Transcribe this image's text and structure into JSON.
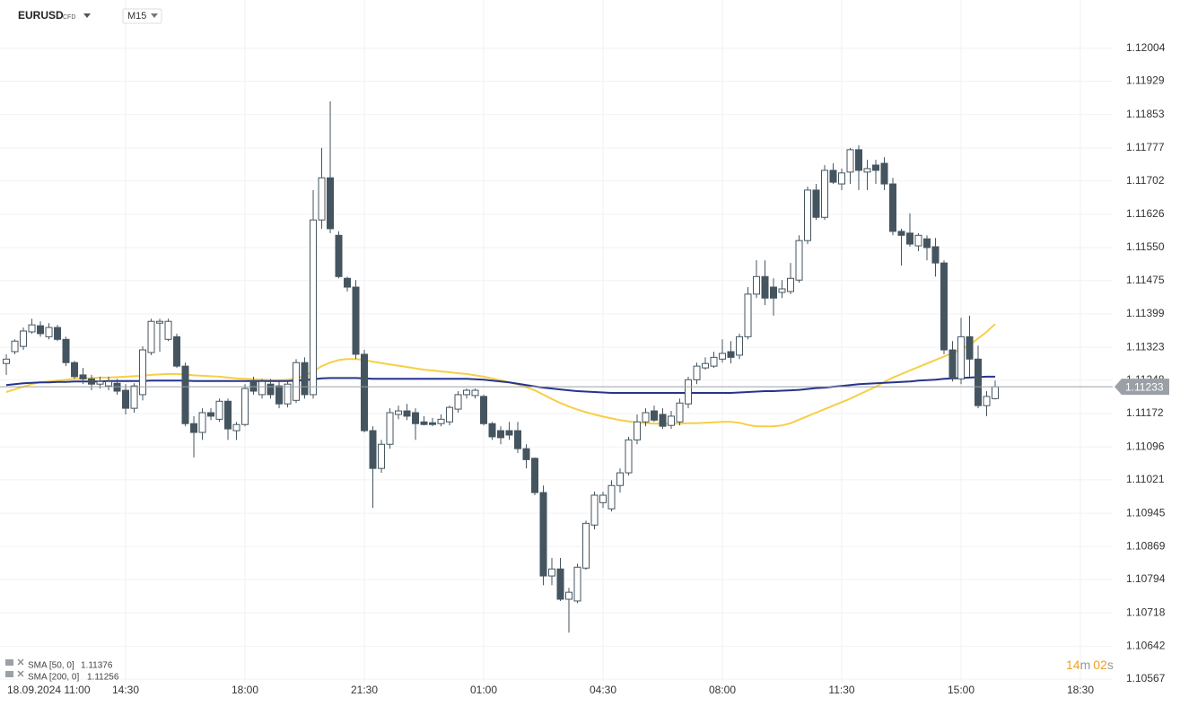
{
  "chart_data": {
    "type": "candlestick",
    "symbol": "EURUSD",
    "instrument_type": "CFD",
    "interval": "M15",
    "up_color": "#ffffff",
    "down_color": "#455560",
    "grid": true,
    "open": [
      1.11286,
      1.11313,
      1.11325,
      1.11358,
      1.11372,
      1.11347,
      1.11368,
      1.11341,
      1.11288,
      1.1126,
      1.11251,
      1.11239,
      1.11235,
      1.11241,
      1.11225,
      1.11184,
      1.11215,
      1.11311,
      1.11378,
      1.11341,
      1.11347,
      1.1128,
      1.11149,
      1.11129,
      1.11174,
      1.11159,
      1.112,
      1.11133,
      1.11147,
      1.11245,
      1.11215,
      1.11239,
      1.11235,
      1.11194,
      1.11202,
      1.11288,
      1.11215,
      1.11613,
      1.11709,
      1.11578,
      1.1148,
      1.1146,
      1.11307,
      1.11133,
      1.11047,
      1.11102,
      1.1117,
      1.11178,
      1.11174,
      1.11153,
      1.11151,
      1.11149,
      1.11153,
      1.11182,
      1.11215,
      1.11213,
      1.11211,
      1.11149,
      1.11133,
      1.11133,
      1.11133,
      1.11092,
      1.1107,
      1.10992,
      1.10802,
      1.10818,
      1.10749,
      1.10745,
      1.1082,
      1.10918,
      1.10969,
      1.10955,
      1.11008,
      1.11037,
      1.11112,
      1.11153,
      1.11178,
      1.1117,
      1.11145,
      1.11153,
      1.11194,
      1.11249,
      1.11276,
      1.1128,
      1.11296,
      1.11313,
      1.11305,
      1.11347,
      1.11444,
      1.11484,
      1.1146,
      1.11448,
      1.1145,
      1.11476,
      1.11566,
      1.11681,
      1.11619,
      1.11726,
      1.11695,
      1.11722,
      1.11773,
      1.11722,
      1.11738,
      1.11742,
      1.11695,
      1.11587,
      1.11583,
      1.11554,
      1.1157,
      1.11552,
      1.11515,
      1.11317,
      1.11251,
      1.11347,
      1.11296,
      1.1119,
      1.11206
    ],
    "high": [
      1.11307,
      1.11341,
      1.11368,
      1.11388,
      1.11382,
      1.11378,
      1.11374,
      1.11347,
      1.11292,
      1.11276,
      1.1126,
      1.11256,
      1.11256,
      1.11251,
      1.11239,
      1.11241,
      1.11325,
      1.11388,
      1.11388,
      1.11388,
      1.11354,
      1.11288,
      1.11166,
      1.11184,
      1.11184,
      1.11206,
      1.11206,
      1.11153,
      1.11239,
      1.11256,
      1.11251,
      1.11251,
      1.11245,
      1.11245,
      1.11296,
      1.113,
      1.11681,
      1.11777,
      1.11883,
      1.11587,
      1.11484,
      1.11476,
      1.11317,
      1.11143,
      1.11112,
      1.11184,
      1.1119,
      1.11194,
      1.11184,
      1.11166,
      1.11162,
      1.1117,
      1.1119,
      1.11223,
      1.11229,
      1.11229,
      1.11215,
      1.11153,
      1.11143,
      1.11153,
      1.11153,
      1.11102,
      1.11072,
      1.11008,
      1.10843,
      1.10843,
      1.10775,
      1.1083,
      1.10928,
      1.10994,
      1.10994,
      1.1102,
      1.11047,
      1.11119,
      1.1117,
      1.11184,
      1.1119,
      1.11184,
      1.11178,
      1.11206,
      1.11256,
      1.11288,
      1.113,
      1.11313,
      1.11341,
      1.11337,
      1.11354,
      1.1146,
      1.11521,
      1.11521,
      1.1148,
      1.11476,
      1.11515,
      1.11578,
      1.11689,
      1.11695,
      1.11738,
      1.11742,
      1.1173,
      1.11777,
      1.11783,
      1.1175,
      1.1175,
      1.11756,
      1.11709,
      1.11593,
      1.11628,
      1.11583,
      1.11578,
      1.11572,
      1.11521,
      1.11337,
      1.1139,
      1.11395,
      1.11327,
      1.11223,
      1.11247
    ],
    "low": [
      1.1126,
      1.11307,
      1.11317,
      1.11354,
      1.11347,
      1.11341,
      1.11337,
      1.1128,
      1.11251,
      1.11239,
      1.11225,
      1.11229,
      1.11225,
      1.11215,
      1.1117,
      1.11174,
      1.11202,
      1.11305,
      1.11313,
      1.11337,
      1.11276,
      1.11143,
      1.11072,
      1.11112,
      1.11157,
      1.11153,
      1.11112,
      1.11112,
      1.11143,
      1.11215,
      1.11206,
      1.11206,
      1.11184,
      1.11186,
      1.11196,
      1.11206,
      1.11206,
      1.11593,
      1.11583,
      1.1148,
      1.1145,
      1.11296,
      1.11129,
      1.10957,
      1.11037,
      1.11092,
      1.11159,
      1.11157,
      1.11112,
      1.11145,
      1.11143,
      1.11143,
      1.11145,
      1.11174,
      1.11206,
      1.11206,
      1.11145,
      1.11112,
      1.11102,
      1.11112,
      1.11082,
      1.11047,
      1.10986,
      1.10781,
      1.10781,
      1.10745,
      1.10673,
      1.1074,
      1.10816,
      1.10908,
      1.10957,
      1.10949,
      1.10992,
      1.11031,
      1.11102,
      1.11143,
      1.11153,
      1.11137,
      1.11137,
      1.11145,
      1.11184,
      1.11239,
      1.11272,
      1.11276,
      1.11288,
      1.11286,
      1.11296,
      1.11341,
      1.11435,
      1.11419,
      1.11395,
      1.11435,
      1.11444,
      1.1147,
      1.11558,
      1.11613,
      1.11613,
      1.11695,
      1.11681,
      1.11695,
      1.11681,
      1.11681,
      1.11695,
      1.11681,
      1.11578,
      1.11509,
      1.11552,
      1.11542,
      1.11521,
      1.11484,
      1.11307,
      1.11245,
      1.11239,
      1.11256,
      1.11184,
      1.11166,
      1.11204
    ],
    "close": [
      1.11296,
      1.11337,
      1.1136,
      1.11374,
      1.11354,
      1.11368,
      1.11341,
      1.11288,
      1.11256,
      1.11251,
      1.11239,
      1.11245,
      1.11245,
      1.11223,
      1.11184,
      1.11235,
      1.11317,
      1.11382,
      1.11382,
      1.11382,
      1.1128,
      1.11149,
      1.11129,
      1.11174,
      1.11166,
      1.112,
      1.11137,
      1.11147,
      1.11229,
      1.11223,
      1.11245,
      1.11215,
      1.11194,
      1.11239,
      1.11288,
      1.11215,
      1.11613,
      1.11709,
      1.11593,
      1.11484,
      1.1146,
      1.11307,
      1.11133,
      1.11047,
      1.11102,
      1.11174,
      1.11178,
      1.11166,
      1.11149,
      1.11147,
      1.11147,
      1.11159,
      1.11186,
      1.11215,
      1.11225,
      1.11225,
      1.11149,
      1.11119,
      1.11117,
      1.11123,
      1.11092,
      1.11067,
      1.10992,
      1.10802,
      1.10818,
      1.10749,
      1.10765,
      1.10822,
      1.10922,
      1.10986,
      1.10986,
      1.11008,
      1.11037,
      1.11112,
      1.11153,
      1.11174,
      1.11157,
      1.11143,
      1.11166,
      1.11196,
      1.11249,
      1.1128,
      1.11286,
      1.113,
      1.11309,
      1.113,
      1.11347,
      1.11444,
      1.11484,
      1.11435,
      1.11435,
      1.11456,
      1.1148,
      1.11566,
      1.11681,
      1.11619,
      1.11726,
      1.11699,
      1.1172,
      1.11773,
      1.11726,
      1.1173,
      1.11726,
      1.11695,
      1.11587,
      1.11578,
      1.11558,
      1.11578,
      1.1155,
      1.11515,
      1.11317,
      1.11251,
      1.11347,
      1.11296,
      1.1119,
      1.11211,
      1.11233
    ],
    "series": [
      {
        "name": "SMA [50, 0]",
        "color": "#f6cf45",
        "values": [
          1.11221,
          1.11227,
          1.11233,
          1.11239,
          1.11243,
          1.11245,
          1.11247,
          1.11249,
          1.11251,
          1.11251,
          1.11253,
          1.11254,
          1.11254,
          1.11255,
          1.11256,
          1.11257,
          1.11258,
          1.1126,
          1.11261,
          1.11262,
          1.11262,
          1.11261,
          1.11259,
          1.11258,
          1.11257,
          1.11256,
          1.11254,
          1.11252,
          1.11251,
          1.1125,
          1.11249,
          1.11248,
          1.11248,
          1.11249,
          1.11252,
          1.11258,
          1.11268,
          1.1128,
          1.11288,
          1.11294,
          1.11296,
          1.11296,
          1.11294,
          1.1129,
          1.11287,
          1.11284,
          1.11281,
          1.11278,
          1.11275,
          1.11272,
          1.1127,
          1.11268,
          1.11266,
          1.11264,
          1.11262,
          1.11259,
          1.11256,
          1.11252,
          1.11248,
          1.11243,
          1.11238,
          1.11232,
          1.11225,
          1.11215,
          1.11205,
          1.11196,
          1.11188,
          1.11181,
          1.11175,
          1.1117,
          1.11165,
          1.11161,
          1.11157,
          1.11154,
          1.11152,
          1.1115,
          1.11149,
          1.11149,
          1.11149,
          1.11149,
          1.1115,
          1.1115,
          1.11151,
          1.11152,
          1.11153,
          1.11153,
          1.11151,
          1.11146,
          1.11143,
          1.11143,
          1.11143,
          1.11145,
          1.1115,
          1.11158,
          1.11166,
          1.11174,
          1.11182,
          1.1119,
          1.11198,
          1.11206,
          1.11215,
          1.11224,
          1.11233,
          1.11244,
          1.11254,
          1.11262,
          1.1127,
          1.11278,
          1.11286,
          1.11294,
          1.11302,
          1.1131,
          1.11318,
          1.11328,
          1.11343,
          1.11358,
          1.11376
        ]
      },
      {
        "name": "SMA [200, 0]",
        "color": "#27348b",
        "values": [
          1.11237,
          1.11239,
          1.11241,
          1.11242,
          1.11243,
          1.11243,
          1.11244,
          1.11244,
          1.11245,
          1.11245,
          1.11245,
          1.11245,
          1.11246,
          1.11246,
          1.11246,
          1.11246,
          1.11246,
          1.11247,
          1.11247,
          1.11247,
          1.11247,
          1.11247,
          1.11246,
          1.11246,
          1.11246,
          1.11246,
          1.11246,
          1.11246,
          1.11246,
          1.11246,
          1.11246,
          1.11246,
          1.11246,
          1.11246,
          1.11247,
          1.11248,
          1.1125,
          1.11252,
          1.11253,
          1.11253,
          1.11253,
          1.11253,
          1.11252,
          1.11251,
          1.11251,
          1.11251,
          1.11251,
          1.11251,
          1.11251,
          1.11251,
          1.11251,
          1.11251,
          1.11251,
          1.11251,
          1.11251,
          1.1125,
          1.11249,
          1.11247,
          1.11245,
          1.11243,
          1.1124,
          1.11237,
          1.11234,
          1.11231,
          1.11229,
          1.11227,
          1.11225,
          1.11223,
          1.11222,
          1.11221,
          1.1122,
          1.11219,
          1.11219,
          1.11219,
          1.11219,
          1.11219,
          1.11219,
          1.11219,
          1.11219,
          1.11219,
          1.11219,
          1.11219,
          1.11219,
          1.11219,
          1.11219,
          1.11219,
          1.1122,
          1.11221,
          1.11222,
          1.11223,
          1.11223,
          1.11224,
          1.11225,
          1.11226,
          1.11228,
          1.1123,
          1.11231,
          1.11233,
          1.11235,
          1.11237,
          1.11239,
          1.1124,
          1.11241,
          1.11242,
          1.11243,
          1.11244,
          1.11245,
          1.11247,
          1.11248,
          1.11249,
          1.11251,
          1.11252,
          1.11253,
          1.11254,
          1.11255,
          1.11256,
          1.11256
        ]
      }
    ],
    "ylim": [
      1.10561,
      1.12114
    ],
    "yticks": [
      1.12004,
      1.11929,
      1.11853,
      1.11777,
      1.11702,
      1.11626,
      {
        "value": 1.1155,
        "label": "1.11550"
      },
      1.11475,
      1.11399,
      1.11323,
      1.11248,
      1.11172,
      1.11096,
      1.11021,
      1.10945,
      1.10869,
      1.10794,
      1.10718,
      1.10642,
      1.10567
    ],
    "xlim": [
      -0.74,
      129.79
    ],
    "xticks": [
      {
        "value": 0,
        "label": "18.09.2024 11:00"
      },
      {
        "value": 14,
        "label": "14:30"
      },
      {
        "value": 28,
        "label": "18:00"
      },
      {
        "value": 42,
        "label": "21:30"
      },
      {
        "value": 56,
        "label": "01:00"
      },
      {
        "value": 70,
        "label": "04:30"
      },
      {
        "value": 84,
        "label": "08:00"
      },
      {
        "value": 98,
        "label": "11:30"
      },
      {
        "value": 112,
        "label": "15:00"
      },
      {
        "value": 126,
        "label": "18:30"
      }
    ],
    "timer": {
      "minutes": "14",
      "minutes_unit": "m",
      "seconds": "02",
      "seconds_unit": "s"
    }
  }
}
